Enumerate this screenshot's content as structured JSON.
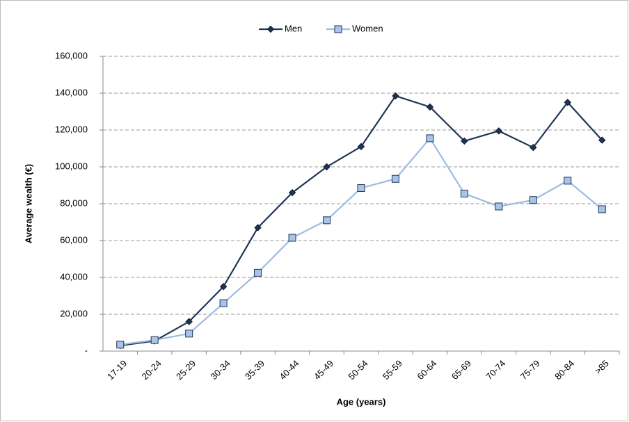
{
  "chart_data": {
    "type": "line",
    "categories": [
      "17-19",
      "20-24",
      "25-29",
      "30-34",
      "35-39",
      "40-44",
      "45-49",
      "50-54",
      "55-59",
      "60-64",
      "65-69",
      "70-74",
      "75-79",
      "80-84",
      ">85"
    ],
    "series": [
      {
        "name": "Men",
        "color": "#1f3556",
        "marker": "diamond",
        "values": [
          3000,
          5500,
          16000,
          35000,
          67000,
          86000,
          100000,
          111000,
          138500,
          132500,
          114000,
          119500,
          110500,
          135000,
          114500
        ]
      },
      {
        "name": "Women",
        "color": "#9dbbe0",
        "marker": "square",
        "values": [
          3500,
          6000,
          9500,
          26000,
          42500,
          61500,
          71000,
          88500,
          93500,
          115500,
          85500,
          78500,
          82000,
          92500,
          77000
        ]
      }
    ],
    "ylim": [
      0,
      160000
    ],
    "yticks": [
      {
        "value": 0,
        "label": "-"
      },
      {
        "value": 20000,
        "label": "20,000"
      },
      {
        "value": 40000,
        "label": "40,000"
      },
      {
        "value": 60000,
        "label": "60,000"
      },
      {
        "value": 80000,
        "label": "80,000"
      },
      {
        "value": 100000,
        "label": "100,000"
      },
      {
        "value": 120000,
        "label": "120,000"
      },
      {
        "value": 140000,
        "label": "140,000"
      },
      {
        "value": 160000,
        "label": "160,000"
      }
    ],
    "y_label": "Average wealth (€)",
    "x_label": "Age (years)",
    "grid": true,
    "legend": "top"
  }
}
